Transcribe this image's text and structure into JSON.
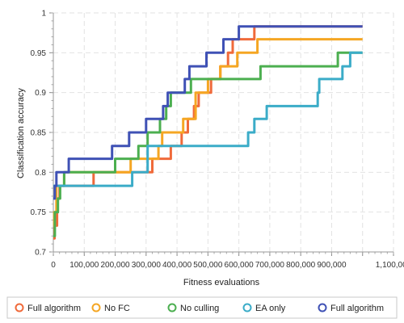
{
  "chart_data": {
    "type": "line",
    "title": "",
    "xlabel": "Fitness evaluations",
    "ylabel": "Classification accuracy",
    "xlim": [
      0,
      1100000
    ],
    "ylim": [
      0.7,
      1.0
    ],
    "x_ticks": [
      0,
      100000,
      200000,
      300000,
      400000,
      500000,
      600000,
      700000,
      800000,
      900000,
      1000000,
      1100000
    ],
    "x_tick_labels": [
      "0",
      "100,000",
      "200,000",
      "300,000",
      "400,000",
      "500,000",
      "600,000",
      "700,000",
      "800,000",
      "900,000",
      "",
      "1,100,000"
    ],
    "y_ticks": [
      0.7,
      0.75,
      0.8,
      0.85,
      0.9,
      0.95,
      1.0
    ],
    "y_tick_labels": [
      "0.7",
      "0.75",
      "0.8",
      "0.85",
      "0.9",
      "0.95",
      "1"
    ],
    "grid": true,
    "legend_position": "bottom",
    "series": [
      {
        "name": "Full algorithm",
        "color": "#f06a3a",
        "x": [
          0,
          4000,
          4000,
          12000,
          12000,
          20000,
          20000,
          130000,
          130000,
          320000,
          320000,
          380000,
          380000,
          415000,
          415000,
          435000,
          435000,
          455000,
          455000,
          470000,
          470000,
          510000,
          510000,
          540000,
          540000,
          565000,
          565000,
          580000,
          580000,
          650000,
          650000,
          755000,
          755000,
          1000000
        ],
        "y": [
          0.717,
          0.717,
          0.733,
          0.733,
          0.767,
          0.767,
          0.783,
          0.783,
          0.8,
          0.8,
          0.817,
          0.817,
          0.833,
          0.833,
          0.85,
          0.85,
          0.867,
          0.867,
          0.883,
          0.883,
          0.9,
          0.9,
          0.917,
          0.917,
          0.933,
          0.933,
          0.95,
          0.95,
          0.967,
          0.967,
          0.983,
          0.983,
          0.983,
          0.983
        ]
      },
      {
        "name": "No FC",
        "color": "#f5a623",
        "x": [
          0,
          3000,
          3000,
          10000,
          10000,
          35000,
          35000,
          250000,
          250000,
          340000,
          340000,
          352000,
          352000,
          420000,
          420000,
          460000,
          460000,
          500000,
          500000,
          540000,
          540000,
          595000,
          595000,
          660000,
          660000,
          690000,
          690000,
          1000000
        ],
        "y": [
          0.733,
          0.733,
          0.75,
          0.75,
          0.783,
          0.783,
          0.8,
          0.8,
          0.817,
          0.817,
          0.833,
          0.833,
          0.85,
          0.85,
          0.867,
          0.867,
          0.9,
          0.9,
          0.917,
          0.917,
          0.933,
          0.933,
          0.95,
          0.95,
          0.967,
          0.967,
          0.967,
          0.967
        ]
      },
      {
        "name": "No culling",
        "color": "#4caf50",
        "x": [
          0,
          5000,
          5000,
          15000,
          15000,
          22000,
          22000,
          35000,
          35000,
          200000,
          200000,
          275000,
          275000,
          305000,
          305000,
          345000,
          345000,
          365000,
          365000,
          380000,
          380000,
          400000,
          400000,
          445000,
          445000,
          670000,
          670000,
          920000,
          920000,
          955000,
          955000,
          1000000
        ],
        "y": [
          0.72,
          0.72,
          0.75,
          0.75,
          0.767,
          0.767,
          0.783,
          0.783,
          0.8,
          0.8,
          0.817,
          0.817,
          0.833,
          0.833,
          0.85,
          0.85,
          0.867,
          0.867,
          0.883,
          0.883,
          0.9,
          0.9,
          0.9,
          0.9,
          0.917,
          0.917,
          0.933,
          0.933,
          0.95,
          0.95,
          0.95,
          0.95
        ]
      },
      {
        "name": "EA only",
        "color": "#3bacc8",
        "x": [
          0,
          255000,
          255000,
          305000,
          305000,
          345000,
          345000,
          630000,
          630000,
          650000,
          650000,
          690000,
          690000,
          855000,
          855000,
          860000,
          860000,
          935000,
          935000,
          960000,
          960000,
          1000000
        ],
        "y": [
          0.783,
          0.783,
          0.8,
          0.8,
          0.833,
          0.833,
          0.833,
          0.833,
          0.85,
          0.85,
          0.867,
          0.867,
          0.883,
          0.883,
          0.9,
          0.9,
          0.917,
          0.917,
          0.933,
          0.933,
          0.95,
          0.95
        ]
      },
      {
        "name": "Full algorithm",
        "color": "#3f51b5",
        "x": [
          0,
          5000,
          5000,
          10000,
          10000,
          50000,
          50000,
          190000,
          190000,
          245000,
          245000,
          300000,
          300000,
          355000,
          355000,
          370000,
          370000,
          395000,
          395000,
          425000,
          425000,
          440000,
          440000,
          485000,
          485000,
          495000,
          495000,
          550000,
          550000,
          600000,
          600000,
          675000,
          675000,
          1000000
        ],
        "y": [
          0.767,
          0.767,
          0.783,
          0.783,
          0.8,
          0.8,
          0.817,
          0.817,
          0.833,
          0.833,
          0.85,
          0.85,
          0.867,
          0.867,
          0.883,
          0.883,
          0.9,
          0.9,
          0.9,
          0.9,
          0.917,
          0.917,
          0.933,
          0.933,
          0.933,
          0.933,
          0.95,
          0.95,
          0.967,
          0.967,
          0.983,
          0.983,
          0.983,
          0.983
        ]
      }
    ]
  }
}
